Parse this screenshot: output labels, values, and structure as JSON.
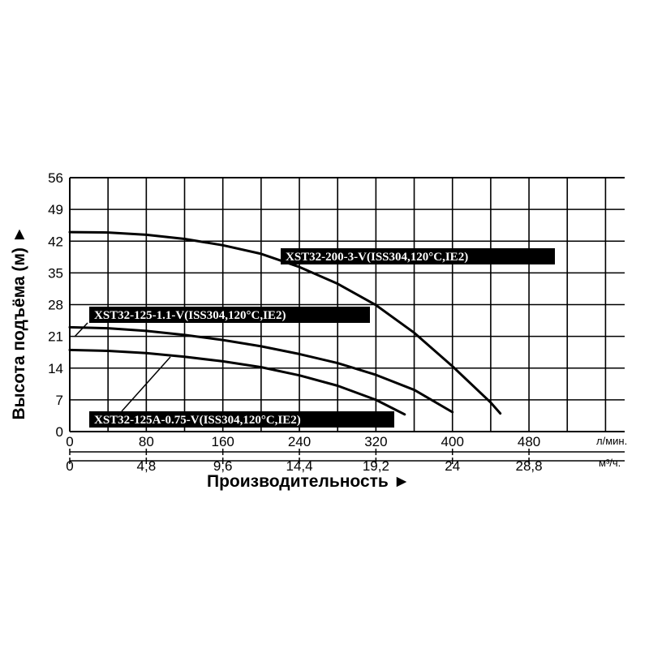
{
  "chart_data": {
    "type": "line",
    "ylabel": "Высота подъёма (м) ►",
    "xlabel": "Производительность ►",
    "x_unit_primary": "л/мин.",
    "x_unit_secondary": "м³/ч.",
    "xlim": [
      0,
      580
    ],
    "ylim": [
      0,
      56
    ],
    "y_ticks": [
      "0",
      "7",
      "14",
      "21",
      "28",
      "35",
      "42",
      "49",
      "56"
    ],
    "y_tick_values": [
      0,
      7,
      14,
      21,
      28,
      35,
      42,
      49,
      56
    ],
    "x_ticks_primary": [
      "0",
      "80",
      "160",
      "240",
      "320",
      "400",
      "480"
    ],
    "x_tick_values_primary": [
      0,
      80,
      160,
      240,
      320,
      400,
      480
    ],
    "x_ticks_secondary": [
      "0",
      "4,8",
      "9,6",
      "14,4",
      "19,2",
      "24",
      "28,8"
    ],
    "grid": true,
    "series": [
      {
        "name": "XST32-200-3-V(ISS304,120°C,IE2)",
        "x": [
          0,
          40,
          80,
          120,
          160,
          200,
          240,
          280,
          320,
          360,
          400,
          440,
          450
        ],
        "y": [
          44,
          43.9,
          43.4,
          42.5,
          41.1,
          39.2,
          36.3,
          32.6,
          27.9,
          21.8,
          14.4,
          6.4,
          4
        ]
      },
      {
        "name": "XST32-125-1.1-V(ISS304,120°C,IE2)",
        "x": [
          0,
          40,
          80,
          120,
          160,
          200,
          240,
          280,
          320,
          360,
          400
        ],
        "y": [
          23,
          22.8,
          22.2,
          21.3,
          20.2,
          18.8,
          17.1,
          15.1,
          12.5,
          9.2,
          4.3
        ]
      },
      {
        "name": "XST32-125A-0.75-V(ISS304,120°C,IE2)",
        "x": [
          0,
          40,
          80,
          120,
          160,
          200,
          240,
          280,
          320,
          350
        ],
        "y": [
          18,
          17.8,
          17.3,
          16.5,
          15.5,
          14.2,
          12.4,
          10.1,
          7,
          3.8
        ]
      }
    ]
  }
}
